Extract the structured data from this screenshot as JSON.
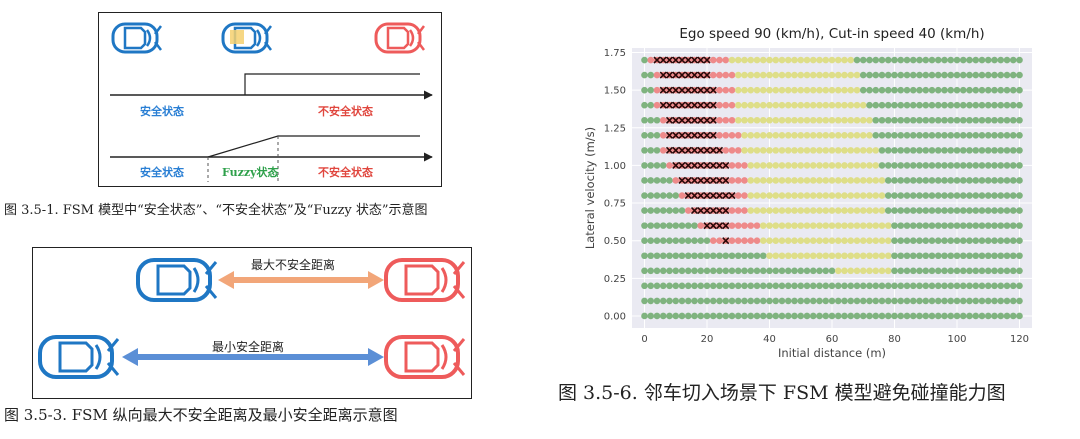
{
  "fig1": {
    "label_safe_1": "安全状态",
    "label_unsafe_1": "不安全状态",
    "label_safe_2": "安全状态",
    "label_fuzzy": "Fuzzy状态",
    "label_unsafe_2": "不安全状态",
    "caption": "图 3.5-1. FSM 模型中“安全状态”、“不安全状态”及“Fuzzy 状态”示意图"
  },
  "fig2": {
    "label_max_unsafe": "最大不安全距离",
    "label_min_safe": "最小安全距离",
    "caption": "图 3.5-3. FSM 纵向最大不安全距离及最小安全距离示意图"
  },
  "fig3": {
    "caption": "图 3.5-6. 邻车切入场景下 FSM 模型避免碰撞能力图"
  },
  "colors": {
    "ego_blue": "#1f77c4",
    "cutin_red": "#ee5b5b",
    "safe_green": "#7fb37f",
    "fuzzy_yellow": "#dede88",
    "unsafe_red": "#ee8a8a",
    "collision_black": "#2b0808",
    "label_blue": "#2a7fd4",
    "label_red": "#e0473f",
    "label_green": "#2ea04a",
    "arrow_orange": "#f2a679",
    "arrow_blue": "#5b8fd6"
  },
  "chart_data": {
    "type": "scatter",
    "title": "Ego speed 90 (km/h), Cut-in speed 40 (km/h)",
    "xlabel": "Initial distance (m)",
    "ylabel": "Lateral velocity (m/s)",
    "xlim": [
      -4,
      124
    ],
    "ylim": [
      -0.08,
      1.78
    ],
    "xticks": [
      "0",
      "20",
      "40",
      "60",
      "80",
      "100",
      "120"
    ],
    "yticks": [
      "0.00",
      "0.25",
      "0.50",
      "0.75",
      "1.00",
      "1.25",
      "1.50",
      "1.75"
    ],
    "grid": true,
    "x_step": 2,
    "x_range": [
      0,
      120
    ],
    "y_step": 0.1,
    "y_range": [
      0.0,
      1.7
    ],
    "categories": [
      "safe",
      "fuzzy",
      "unsafe",
      "collision"
    ],
    "rows": [
      {
        "y": 1.7,
        "collision": [
          4,
          20
        ],
        "unsafe": [
          2,
          26
        ],
        "fuzzy": [
          28,
          66
        ]
      },
      {
        "y": 1.6,
        "collision": [
          6,
          20
        ],
        "unsafe": [
          4,
          28
        ],
        "fuzzy": [
          30,
          68
        ]
      },
      {
        "y": 1.5,
        "collision": [
          6,
          22
        ],
        "unsafe": [
          4,
          28
        ],
        "fuzzy": [
          30,
          68
        ]
      },
      {
        "y": 1.4,
        "collision": [
          6,
          22
        ],
        "unsafe": [
          4,
          28
        ],
        "fuzzy": [
          30,
          70
        ]
      },
      {
        "y": 1.3,
        "collision": [
          8,
          22
        ],
        "unsafe": [
          6,
          28
        ],
        "fuzzy": [
          30,
          72
        ]
      },
      {
        "y": 1.2,
        "collision": [
          8,
          22
        ],
        "unsafe": [
          6,
          30
        ],
        "fuzzy": [
          32,
          72
        ]
      },
      {
        "y": 1.1,
        "collision": [
          8,
          24
        ],
        "unsafe": [
          6,
          30
        ],
        "fuzzy": [
          32,
          74
        ]
      },
      {
        "y": 1.0,
        "collision": [
          10,
          26
        ],
        "unsafe": [
          8,
          32
        ],
        "fuzzy": [
          34,
          74
        ]
      },
      {
        "y": 0.9,
        "collision": [
          12,
          26
        ],
        "unsafe": [
          10,
          32
        ],
        "fuzzy": [
          34,
          76
        ]
      },
      {
        "y": 0.8,
        "collision": [
          14,
          28
        ],
        "unsafe": [
          12,
          32
        ],
        "fuzzy": [
          34,
          76
        ]
      },
      {
        "y": 0.7,
        "collision": [
          16,
          26
        ],
        "unsafe": [
          14,
          32
        ],
        "fuzzy": [
          34,
          76
        ]
      },
      {
        "y": 0.6,
        "collision": [
          20,
          26
        ],
        "unsafe": [
          18,
          36
        ],
        "fuzzy": [
          38,
          78
        ]
      },
      {
        "y": 0.5,
        "collision": [
          26,
          26
        ],
        "unsafe": [
          22,
          36
        ],
        "fuzzy": [
          38,
          78
        ]
      },
      {
        "y": 0.4,
        "fuzzy": [
          40,
          78
        ]
      },
      {
        "y": 0.3,
        "fuzzy": [
          62,
          78
        ]
      },
      {
        "y": 0.2
      },
      {
        "y": 0.1
      },
      {
        "y": 0.0
      }
    ]
  }
}
